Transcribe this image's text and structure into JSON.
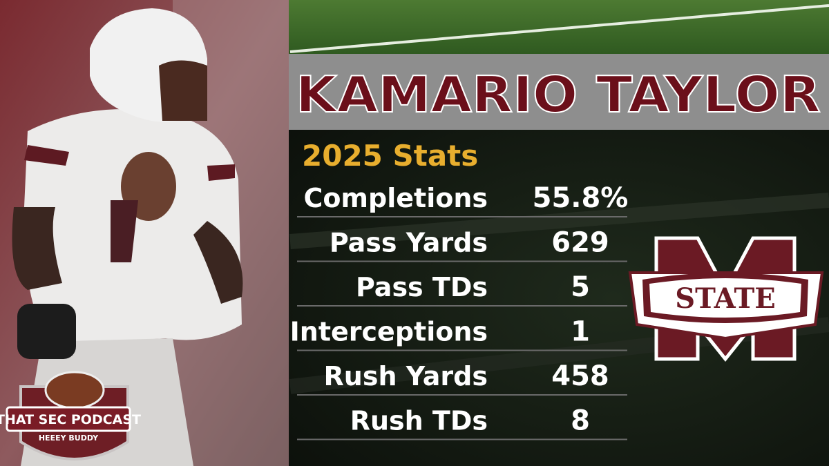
{
  "player": {
    "name": "KAMARIO TAYLOR"
  },
  "stats": {
    "title": "2025 Stats",
    "rows": [
      {
        "label": "Completions",
        "value": "55.8%"
      },
      {
        "label": "Pass Yards",
        "value": "629"
      },
      {
        "label": "Pass TDs",
        "value": "5"
      },
      {
        "label": "Interceptions",
        "value": "1"
      },
      {
        "label": "Rush Yards",
        "value": "458"
      },
      {
        "label": "Rush TDs",
        "value": "8"
      }
    ]
  },
  "logo": {
    "text": "STATE"
  },
  "podcast": {
    "title": "THAT SEC PODCAST",
    "tagline": "HEEEY BUDDY"
  }
}
